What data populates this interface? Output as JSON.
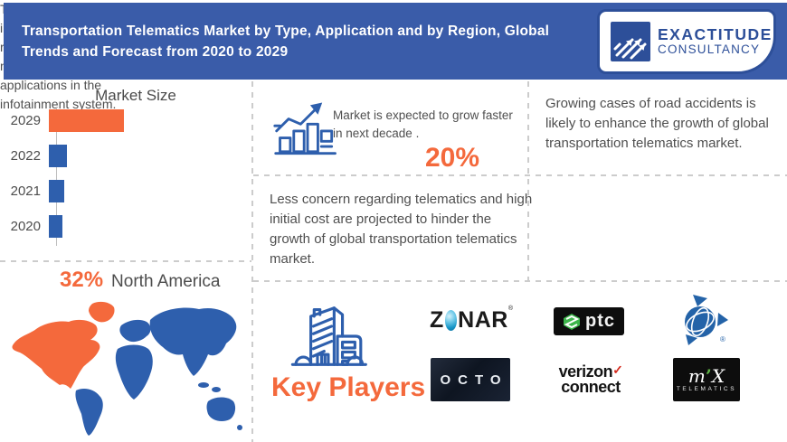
{
  "header": {
    "title_line1": "Transportation Telematics Market by Type, Application and by Region, Global",
    "title_line2": "Trends and Forecast from 2020 to 2029",
    "brand_line1": "EXACTITUDE",
    "brand_line2": "CONSULTANCY"
  },
  "chart_data": {
    "type": "bar",
    "orientation": "horizontal",
    "title": "Market Size",
    "categories": [
      "2029",
      "2022",
      "2021",
      "2020"
    ],
    "values": [
      83,
      20,
      17,
      15
    ],
    "value_note": "relative bar lengths; axis is unlabeled in the infographic",
    "bar_colors": [
      "#f4693c",
      "#2e5fad",
      "#2e5fad",
      "#2e5fad"
    ],
    "xlabel": "",
    "ylabel": "",
    "grid": false,
    "legend": false
  },
  "region_stat": {
    "value": "32%",
    "label": "North America"
  },
  "growth_stat": {
    "text": "Market is expected to grow faster in next decade .",
    "value": "20%"
  },
  "insights": {
    "driver": "Growing cases of road accidents is likely to enhance the growth of global transportation telematics market.",
    "restraint": "Less concern regarding telematics and high initial cost are projected to hinder the growth of global transportation telematics market.",
    "application": "Telematics are utilized to increase the road safety, road transportation , multimedia, and internet applications in the infotainment system."
  },
  "key_players": {
    "label": "Key Players",
    "zonar": {
      "pre": "Z",
      "post": "NAR",
      "reg": "®"
    },
    "ptc": "ptc",
    "octo": "OCTO",
    "verizon": {
      "line1": "verizon",
      "check": "✓",
      "line2": "connect"
    },
    "trimble": {
      "reg": "®"
    },
    "mix": {
      "m": "m",
      "accent": "’",
      "x": "X",
      "sub": "TELEMATICS"
    }
  },
  "colors": {
    "header_blue": "#3a5ca9",
    "brand_blue": "#2d4f99",
    "icon_blue": "#2e5fad",
    "accent_orange": "#f4693c",
    "map_blue": "#2e5fad",
    "body_text": "#4f4f4f",
    "dashed_line": "#cccccc"
  }
}
